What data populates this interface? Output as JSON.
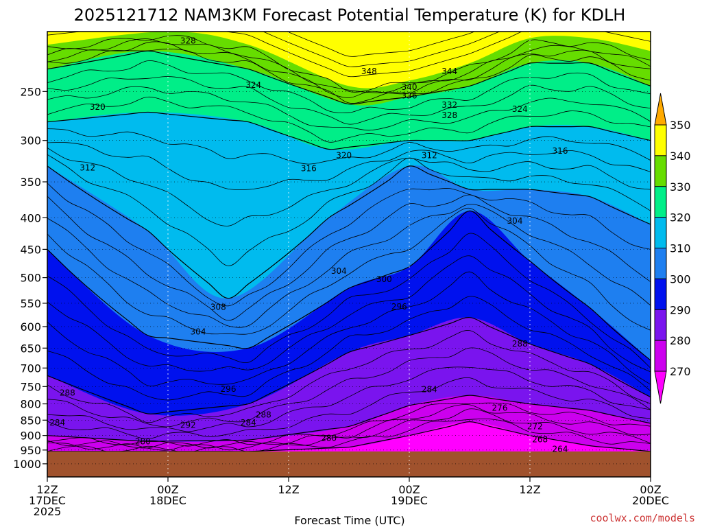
{
  "chart_data": {
    "type": "area",
    "title": "2025121712 NAM3KM Forecast Potential Temperature (K) for KDLH",
    "xlabel": "Forecast Time (UTC)",
    "ylabel": "",
    "y_scale": "log-pressure",
    "ylim": [
      1050,
      200
    ],
    "xlim": [
      0,
      60
    ],
    "x_ticks": [
      {
        "hour": 0,
        "lines": [
          "12Z",
          "17DEC",
          "2025"
        ]
      },
      {
        "hour": 12,
        "lines": [
          "00Z",
          "18DEC"
        ]
      },
      {
        "hour": 24,
        "lines": [
          "12Z"
        ]
      },
      {
        "hour": 36,
        "lines": [
          "00Z",
          "19DEC"
        ]
      },
      {
        "hour": 48,
        "lines": [
          "12Z"
        ]
      },
      {
        "hour": 60,
        "lines": [
          "00Z",
          "20DEC"
        ]
      }
    ],
    "y_ticks": [
      250,
      300,
      350,
      400,
      450,
      500,
      550,
      600,
      650,
      700,
      750,
      800,
      850,
      900,
      950,
      1000
    ],
    "legend": {
      "placement": "right",
      "labels": [
        "350",
        "340",
        "330",
        "320",
        "310",
        "300",
        "290",
        "280",
        "270"
      ],
      "bands": [
        {
          "from": 340,
          "to": 350,
          "color": "#ffff00"
        },
        {
          "from": 330,
          "to": 340,
          "color": "#66dd00"
        },
        {
          "from": 320,
          "to": 330,
          "color": "#00ee88"
        },
        {
          "from": 310,
          "to": 320,
          "color": "#00bbee"
        },
        {
          "from": 300,
          "to": 310,
          "color": "#1e7ff0"
        },
        {
          "from": 290,
          "to": 300,
          "color": "#0011ee"
        },
        {
          "from": 280,
          "to": 290,
          "color": "#7a14ee"
        },
        {
          "from": 270,
          "to": 280,
          "color": "#cc00ee"
        }
      ],
      "above_color": "#ffaa00",
      "below_color": "#ff00ff"
    },
    "terrain_color": "#a0522d",
    "surface_pressure": 955,
    "series": [
      {
        "name": "270",
        "values": [
          {
            "hour": 0,
            "pressure": 955
          },
          {
            "hour": 10,
            "pressure": 955
          },
          {
            "hour": 20,
            "pressure": 955
          },
          {
            "hour": 30,
            "pressure": 940
          },
          {
            "hour": 36,
            "pressure": 900
          },
          {
            "hour": 42,
            "pressure": 855
          },
          {
            "hour": 48,
            "pressure": 900
          },
          {
            "hour": 54,
            "pressure": 935
          },
          {
            "hour": 60,
            "pressure": 955
          }
        ]
      },
      {
        "name": "280",
        "values": [
          {
            "hour": 0,
            "pressure": 900
          },
          {
            "hour": 10,
            "pressure": 920
          },
          {
            "hour": 20,
            "pressure": 915
          },
          {
            "hour": 30,
            "pressure": 870
          },
          {
            "hour": 36,
            "pressure": 805
          },
          {
            "hour": 42,
            "pressure": 775
          },
          {
            "hour": 48,
            "pressure": 800
          },
          {
            "hour": 54,
            "pressure": 820
          },
          {
            "hour": 60,
            "pressure": 860
          }
        ]
      },
      {
        "name": "290",
        "values": [
          {
            "hour": 0,
            "pressure": 720
          },
          {
            "hour": 10,
            "pressure": 830
          },
          {
            "hour": 20,
            "pressure": 800
          },
          {
            "hour": 30,
            "pressure": 660
          },
          {
            "hour": 36,
            "pressure": 620
          },
          {
            "hour": 42,
            "pressure": 580
          },
          {
            "hour": 48,
            "pressure": 640
          },
          {
            "hour": 54,
            "pressure": 690
          },
          {
            "hour": 60,
            "pressure": 780
          }
        ]
      },
      {
        "name": "300",
        "values": [
          {
            "hour": 0,
            "pressure": 450
          },
          {
            "hour": 10,
            "pressure": 620
          },
          {
            "hour": 20,
            "pressure": 650
          },
          {
            "hour": 30,
            "pressure": 520
          },
          {
            "hour": 36,
            "pressure": 480
          },
          {
            "hour": 42,
            "pressure": 390
          },
          {
            "hour": 48,
            "pressure": 470
          },
          {
            "hour": 54,
            "pressure": 560
          },
          {
            "hour": 60,
            "pressure": 680
          }
        ]
      },
      {
        "name": "310",
        "values": [
          {
            "hour": 0,
            "pressure": 330
          },
          {
            "hour": 10,
            "pressure": 420
          },
          {
            "hour": 18,
            "pressure": 540
          },
          {
            "hour": 28,
            "pressure": 400
          },
          {
            "hour": 36,
            "pressure": 330
          },
          {
            "hour": 42,
            "pressure": 360
          },
          {
            "hour": 48,
            "pressure": 360
          },
          {
            "hour": 54,
            "pressure": 370
          },
          {
            "hour": 60,
            "pressure": 410
          }
        ]
      },
      {
        "name": "320",
        "values": [
          {
            "hour": 0,
            "pressure": 280
          },
          {
            "hour": 10,
            "pressure": 270
          },
          {
            "hour": 20,
            "pressure": 280
          },
          {
            "hour": 28,
            "pressure": 310
          },
          {
            "hour": 36,
            "pressure": 300
          },
          {
            "hour": 42,
            "pressure": 300
          },
          {
            "hour": 48,
            "pressure": 285
          },
          {
            "hour": 54,
            "pressure": 285
          },
          {
            "hour": 60,
            "pressure": 300
          }
        ]
      },
      {
        "name": "330",
        "values": [
          {
            "hour": 0,
            "pressure": 230
          },
          {
            "hour": 10,
            "pressure": 215
          },
          {
            "hour": 20,
            "pressure": 230
          },
          {
            "hour": 30,
            "pressure": 262
          },
          {
            "hour": 36,
            "pressure": 255
          },
          {
            "hour": 42,
            "pressure": 245
          },
          {
            "hour": 48,
            "pressure": 225
          },
          {
            "hour": 54,
            "pressure": 225
          },
          {
            "hour": 60,
            "pressure": 245
          }
        ]
      },
      {
        "name": "340",
        "values": [
          {
            "hour": 0,
            "pressure": 210
          },
          {
            "hour": 12,
            "pressure": 200
          },
          {
            "hour": 20,
            "pressure": 210
          },
          {
            "hour": 30,
            "pressure": 245
          },
          {
            "hour": 36,
            "pressure": 240
          },
          {
            "hour": 42,
            "pressure": 225
          },
          {
            "hour": 48,
            "pressure": 205
          },
          {
            "hour": 54,
            "pressure": 205
          },
          {
            "hour": 60,
            "pressure": 215
          }
        ]
      }
    ],
    "contour_labels": [
      {
        "text": "328",
        "hour": 14,
        "pressure": 207
      },
      {
        "text": "324",
        "hour": 20.5,
        "pressure": 244
      },
      {
        "text": "320",
        "hour": 5,
        "pressure": 265
      },
      {
        "text": "312",
        "hour": 4,
        "pressure": 332
      },
      {
        "text": "348",
        "hour": 32,
        "pressure": 232
      },
      {
        "text": "344",
        "hour": 40,
        "pressure": 232
      },
      {
        "text": "340",
        "hour": 36,
        "pressure": 246
      },
      {
        "text": "336",
        "hour": 36,
        "pressure": 254
      },
      {
        "text": "332",
        "hour": 40,
        "pressure": 263
      },
      {
        "text": "328",
        "hour": 40,
        "pressure": 273
      },
      {
        "text": "324",
        "hour": 47,
        "pressure": 267
      },
      {
        "text": "320",
        "hour": 29.5,
        "pressure": 317
      },
      {
        "text": "316",
        "hour": 26,
        "pressure": 333
      },
      {
        "text": "312",
        "hour": 38,
        "pressure": 317
      },
      {
        "text": "316",
        "hour": 51,
        "pressure": 312
      },
      {
        "text": "304",
        "hour": 46.5,
        "pressure": 405
      },
      {
        "text": "304",
        "hour": 29,
        "pressure": 488
      },
      {
        "text": "300",
        "hour": 33.5,
        "pressure": 503
      },
      {
        "text": "308",
        "hour": 17,
        "pressure": 558
      },
      {
        "text": "296",
        "hour": 35,
        "pressure": 557
      },
      {
        "text": "304",
        "hour": 15,
        "pressure": 612
      },
      {
        "text": "288",
        "hour": 47,
        "pressure": 640
      },
      {
        "text": "288",
        "hour": 2,
        "pressure": 768
      },
      {
        "text": "296",
        "hour": 18,
        "pressure": 757
      },
      {
        "text": "284",
        "hour": 38,
        "pressure": 758
      },
      {
        "text": "276",
        "hour": 45,
        "pressure": 812
      },
      {
        "text": "288",
        "hour": 21.5,
        "pressure": 833
      },
      {
        "text": "284",
        "hour": 1,
        "pressure": 858
      },
      {
        "text": "292",
        "hour": 14,
        "pressure": 866
      },
      {
        "text": "284",
        "hour": 20,
        "pressure": 858
      },
      {
        "text": "272",
        "hour": 48.5,
        "pressure": 870
      },
      {
        "text": "280",
        "hour": 9.5,
        "pressure": 921
      },
      {
        "text": "280",
        "hour": 28,
        "pressure": 909
      },
      {
        "text": "268",
        "hour": 49,
        "pressure": 913
      },
      {
        "text": "264",
        "hour": 51,
        "pressure": 947
      }
    ]
  },
  "credit": "coolwx.com/models"
}
